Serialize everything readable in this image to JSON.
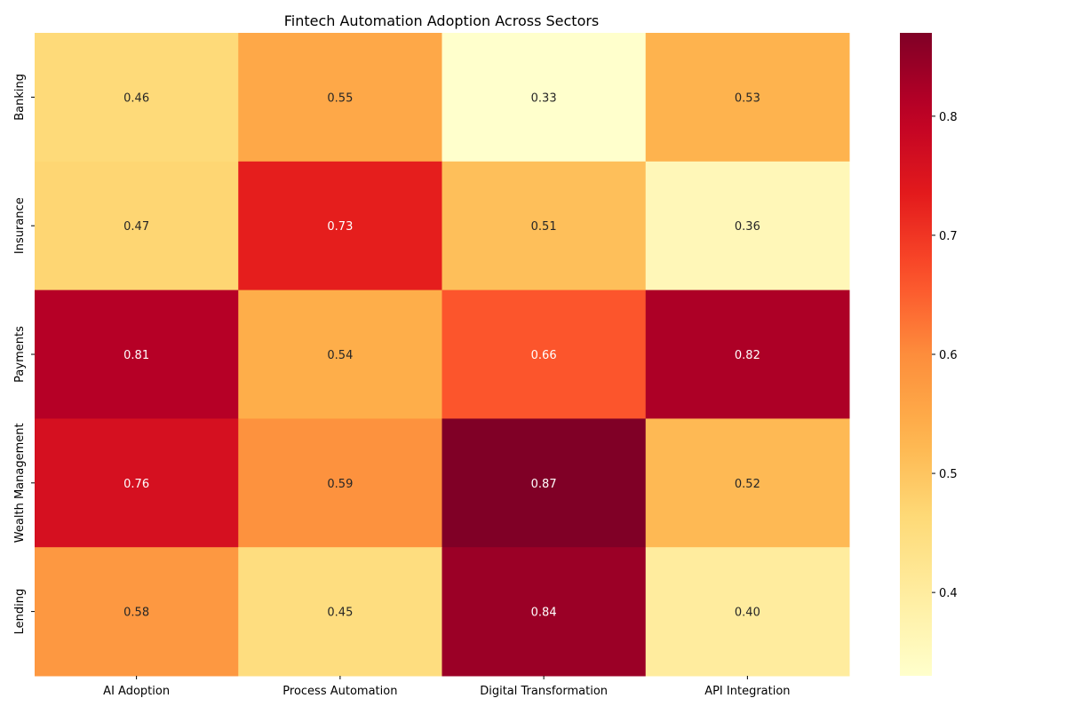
{
  "chart_data": {
    "type": "heatmap",
    "title": "Fintech Automation Adoption Across Sectors",
    "x_categories": [
      "AI Adoption",
      "Process Automation",
      "Digital Transformation",
      "API Integration"
    ],
    "y_categories": [
      "Banking",
      "Insurance",
      "Payments",
      "Wealth Management",
      "Lending"
    ],
    "values": [
      [
        0.46,
        0.55,
        0.33,
        0.53
      ],
      [
        0.47,
        0.73,
        0.51,
        0.36
      ],
      [
        0.81,
        0.54,
        0.66,
        0.82
      ],
      [
        0.76,
        0.59,
        0.87,
        0.52
      ],
      [
        0.58,
        0.45,
        0.84,
        0.4
      ]
    ],
    "value_labels": [
      [
        "0.46",
        "0.55",
        "0.33",
        "0.53"
      ],
      [
        "0.47",
        "0.73",
        "0.51",
        "0.36"
      ],
      [
        "0.81",
        "0.54",
        "0.66",
        "0.82"
      ],
      [
        "0.76",
        "0.59",
        "0.87",
        "0.52"
      ],
      [
        "0.58",
        "0.45",
        "0.84",
        "0.40"
      ]
    ],
    "colormap": "YlOrRd",
    "colorbar": {
      "range": [
        0.33,
        0.87
      ],
      "ticks": [
        0.4,
        0.5,
        0.6,
        0.7,
        0.8
      ],
      "tick_labels": [
        "0.4",
        "0.5",
        "0.6",
        "0.7",
        "0.8"
      ]
    }
  }
}
